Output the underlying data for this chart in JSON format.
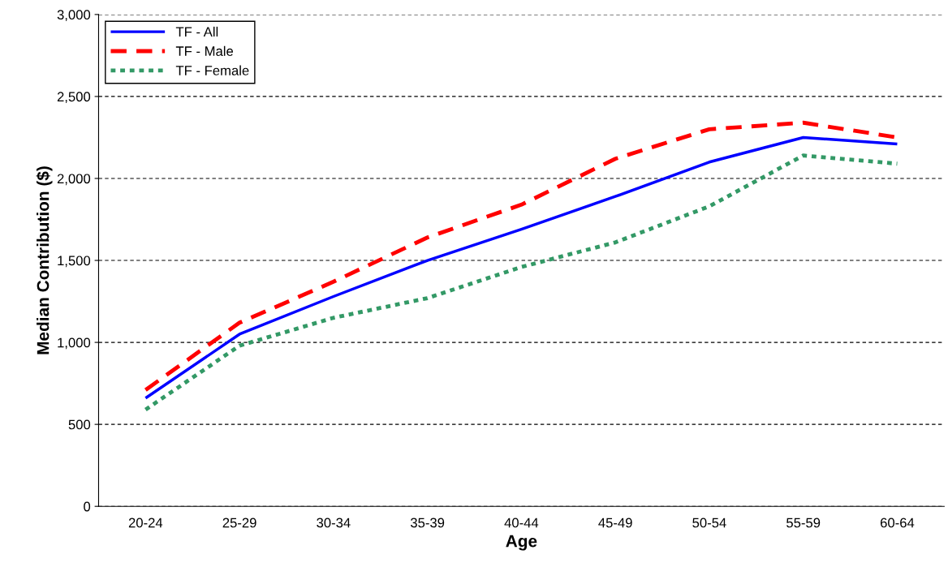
{
  "chart_data": {
    "type": "line",
    "xlabel": "Age",
    "ylabel": "Median Contribution ($)",
    "categories": [
      "20-24",
      "25-29",
      "30-34",
      "35-39",
      "40-44",
      "45-49",
      "50-54",
      "55-59",
      "60-64"
    ],
    "series": [
      {
        "name": "TF - All",
        "color": "#0000ff",
        "line_style": "solid",
        "values": [
          660,
          1050,
          1280,
          1500,
          1690,
          1890,
          2100,
          2250,
          2210
        ]
      },
      {
        "name": "TF - Male",
        "color": "#ff0000",
        "line_style": "dashed",
        "values": [
          710,
          1120,
          1370,
          1640,
          1840,
          2120,
          2300,
          2340,
          2250
        ]
      },
      {
        "name": "TF - Female",
        "color": "#339966",
        "line_style": "dotted",
        "values": [
          590,
          980,
          1150,
          1270,
          1460,
          1610,
          1830,
          2140,
          2090
        ]
      }
    ],
    "ylim": [
      0,
      3000
    ],
    "yticks": [
      {
        "value": 0,
        "label": "0"
      },
      {
        "value": 500,
        "label": "500"
      },
      {
        "value": 1000,
        "label": "1,000"
      },
      {
        "value": 1500,
        "label": "1,500"
      },
      {
        "value": 2000,
        "label": "2,000"
      },
      {
        "value": 2500,
        "label": "2,500"
      },
      {
        "value": 3000,
        "label": "3,000"
      }
    ],
    "grid": "y",
    "legend": "top left"
  }
}
